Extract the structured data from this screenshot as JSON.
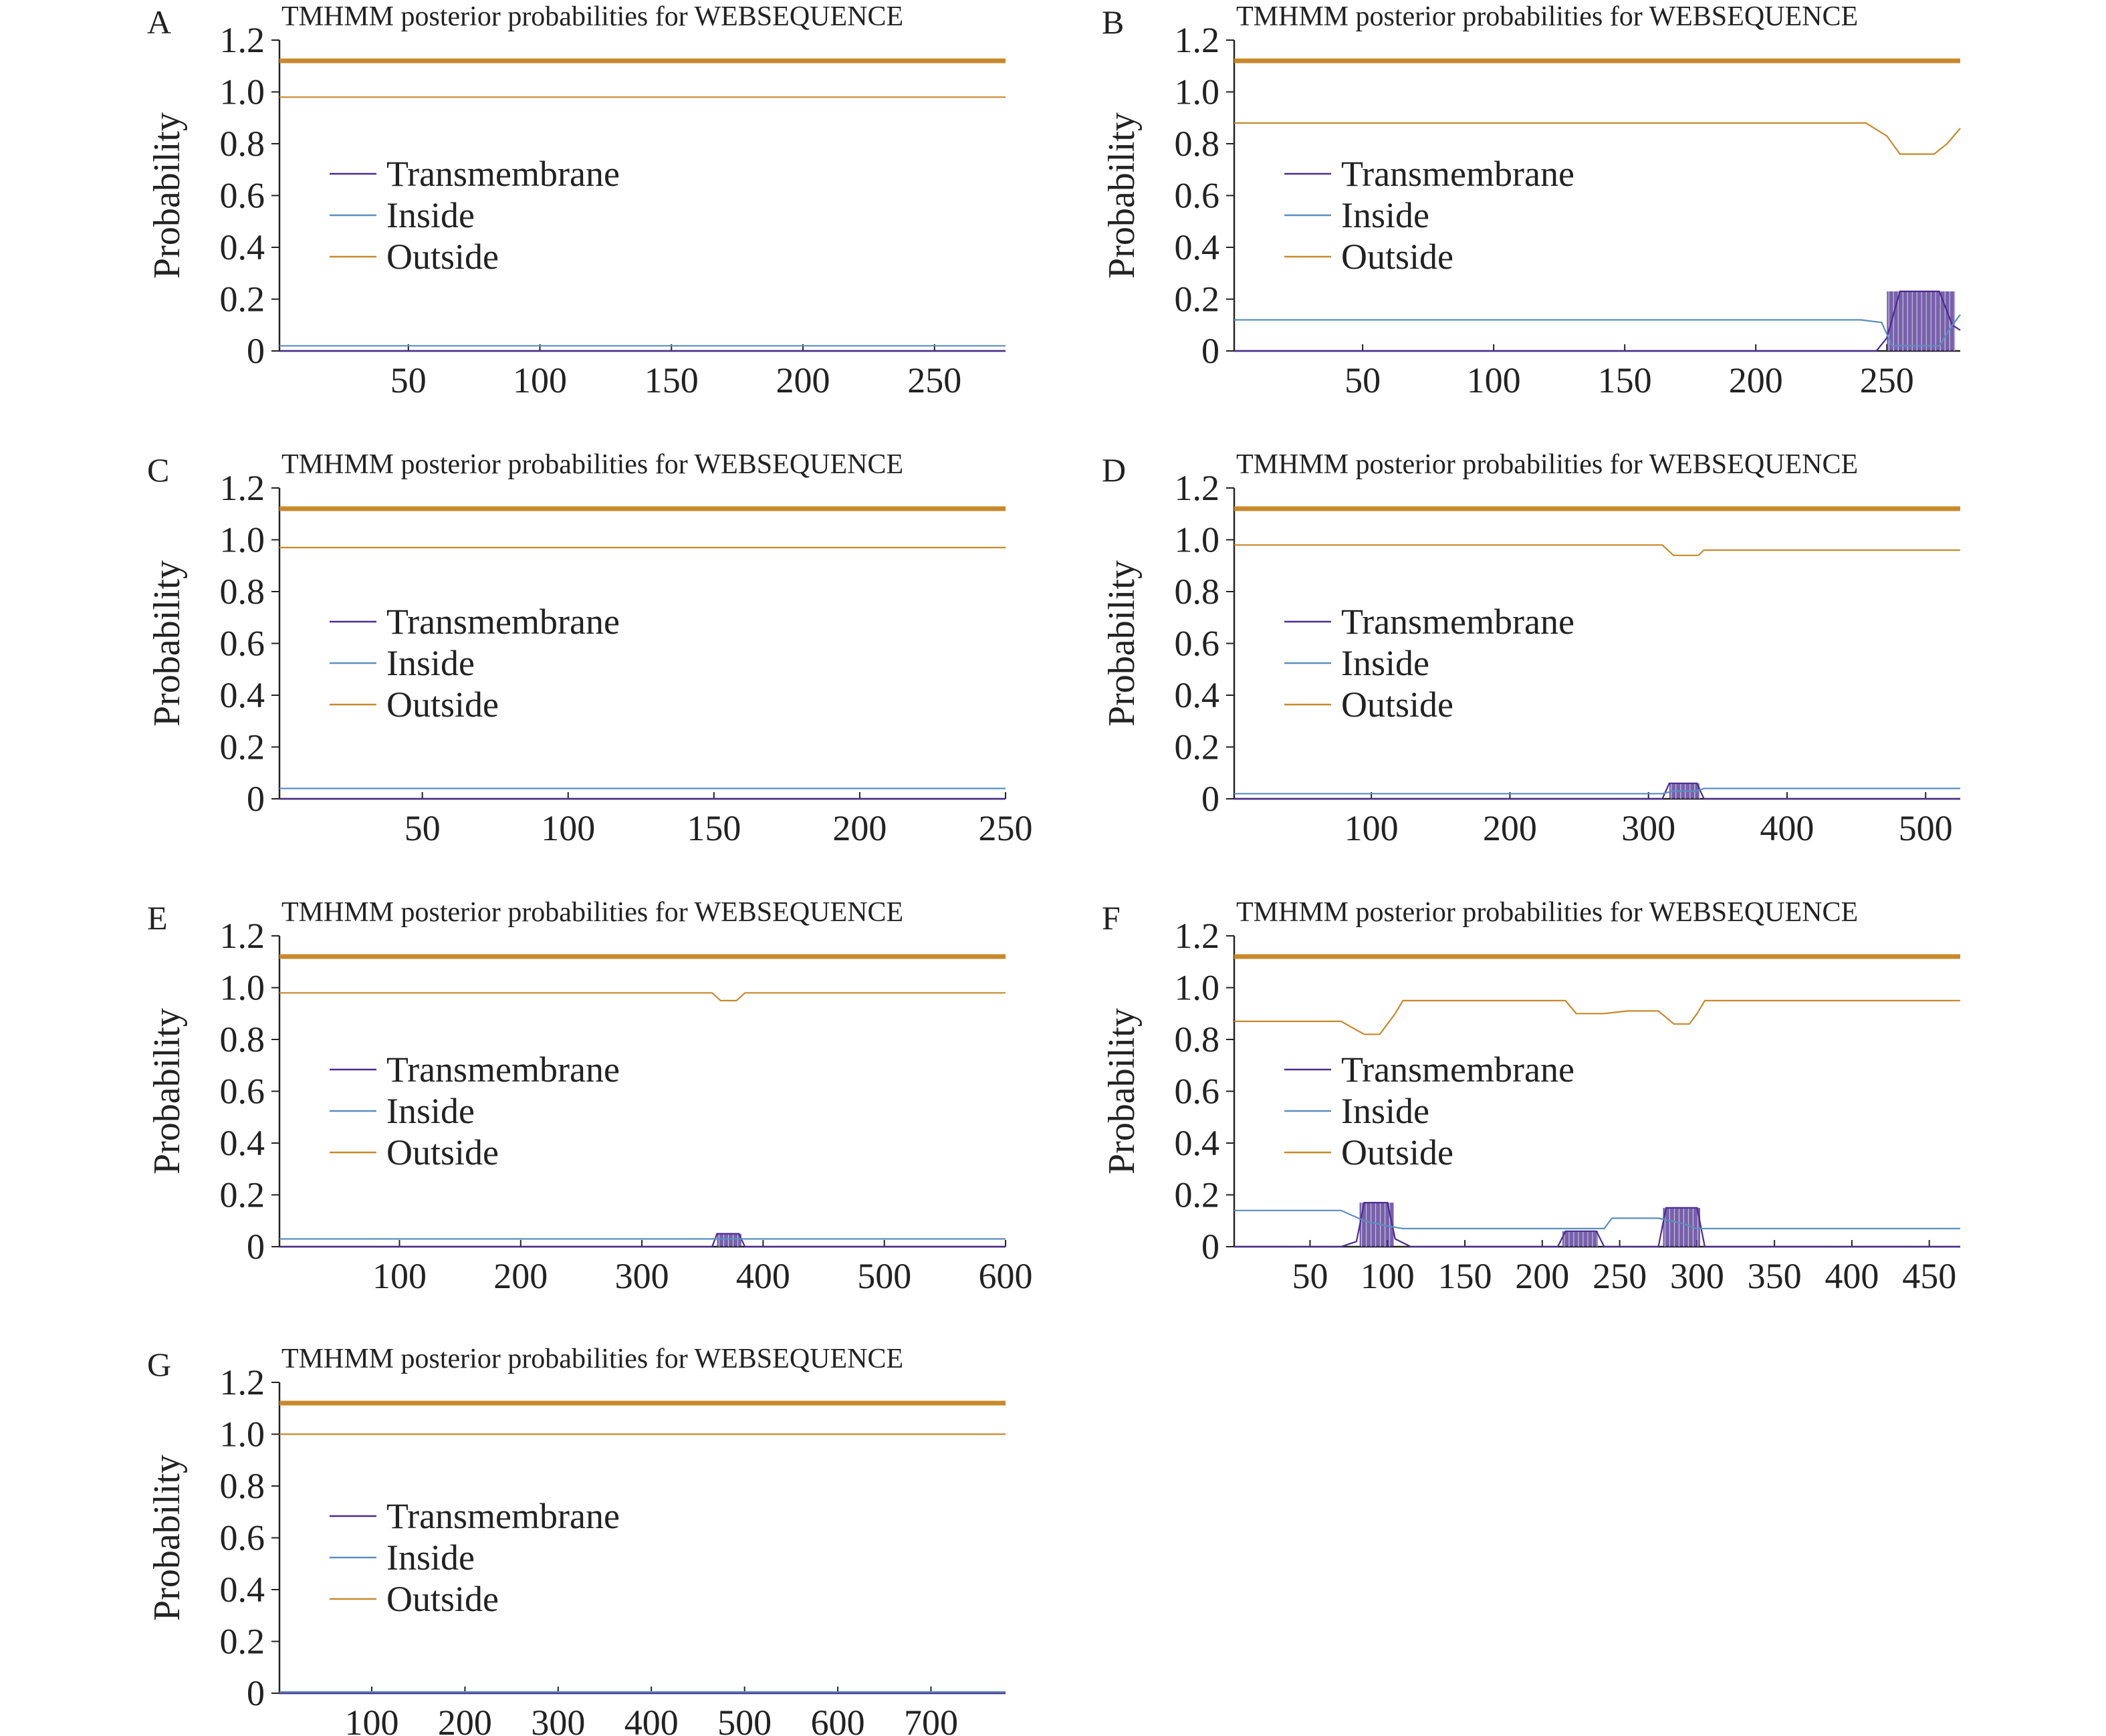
{
  "colors": {
    "transmembrane": "#4b2c8f",
    "inside": "#5b8fbf",
    "outside": "#c8892a",
    "axis": "#222222"
  },
  "chart_data": [
    {
      "panel": "A",
      "type": "line",
      "title": "TMHMM posterior probabilities for WEBSEQUENCE",
      "ylabel": "Probability",
      "xlabel": "",
      "xlim": [
        1,
        277
      ],
      "ylim": [
        0,
        1.2
      ],
      "xticks": [
        50,
        100,
        150,
        200,
        250
      ],
      "yticks": [
        0,
        0.2,
        0.4,
        0.6,
        0.8,
        1.0,
        1.2
      ],
      "ytick_labels": [
        "0",
        "0.2",
        "0.4",
        "0.6",
        "0.8",
        "1.0",
        "1.2"
      ],
      "legend": [
        "Transmembrane",
        "Inside",
        "Outside"
      ],
      "reference_line": 1.12,
      "series": [
        {
          "name": "Transmembrane",
          "x": [
            1,
            277
          ],
          "y": [
            0.0,
            0.0
          ]
        },
        {
          "name": "Inside",
          "x": [
            1,
            277
          ],
          "y": [
            0.02,
            0.02
          ]
        },
        {
          "name": "Outside",
          "x": [
            1,
            277
          ],
          "y": [
            0.98,
            0.98
          ]
        }
      ],
      "tm_bars": []
    },
    {
      "panel": "B",
      "type": "line",
      "title": "TMHMM posterior probabilities for WEBSEQUENCE",
      "ylabel": "Probability",
      "xlabel": "",
      "xlim": [
        1,
        278
      ],
      "ylim": [
        0,
        1.2
      ],
      "xticks": [
        50,
        100,
        150,
        200,
        250
      ],
      "yticks": [
        0,
        0.2,
        0.4,
        0.6,
        0.8,
        1.0,
        1.2
      ],
      "ytick_labels": [
        "0",
        "0.2",
        "0.4",
        "0.6",
        "0.8",
        "1.0",
        "1.2"
      ],
      "legend": [
        "Transmembrane",
        "Inside",
        "Outside"
      ],
      "reference_line": 1.12,
      "series": [
        {
          "name": "Transmembrane",
          "x": [
            1,
            246,
            250,
            255,
            270,
            275,
            278
          ],
          "y": [
            0,
            0,
            0.05,
            0.23,
            0.23,
            0.1,
            0.08
          ]
        },
        {
          "name": "Inside",
          "x": [
            1,
            240,
            248,
            252,
            270,
            275,
            278
          ],
          "y": [
            0.12,
            0.12,
            0.11,
            0.02,
            0.02,
            0.1,
            0.14
          ]
        },
        {
          "name": "Outside",
          "x": [
            1,
            242,
            250,
            255,
            268,
            273,
            278
          ],
          "y": [
            0.88,
            0.88,
            0.83,
            0.76,
            0.76,
            0.8,
            0.86
          ]
        }
      ],
      "tm_bars": [
        {
          "from": 250,
          "to": 276,
          "value": 0.23
        }
      ]
    },
    {
      "panel": "C",
      "type": "line",
      "title": "TMHMM posterior probabilities for WEBSEQUENCE",
      "ylabel": "Probability",
      "xlabel": "",
      "xlim": [
        1,
        250
      ],
      "ylim": [
        0,
        1.2
      ],
      "xticks": [
        50,
        100,
        150,
        200,
        250
      ],
      "yticks": [
        0,
        0.2,
        0.4,
        0.6,
        0.8,
        1.0,
        1.2
      ],
      "ytick_labels": [
        "0",
        "0.2",
        "0.4",
        "0.6",
        "0.8",
        "1.0",
        "1.2"
      ],
      "legend": [
        "Transmembrane",
        "Inside",
        "Outside"
      ],
      "reference_line": 1.12,
      "series": [
        {
          "name": "Transmembrane",
          "x": [
            1,
            250
          ],
          "y": [
            0,
            0
          ]
        },
        {
          "name": "Inside",
          "x": [
            1,
            250
          ],
          "y": [
            0.04,
            0.04
          ]
        },
        {
          "name": "Outside",
          "x": [
            1,
            250
          ],
          "y": [
            0.97,
            0.97
          ]
        }
      ],
      "tm_bars": []
    },
    {
      "panel": "D",
      "type": "line",
      "title": "TMHMM posterior probabilities for WEBSEQUENCE",
      "ylabel": "Probability",
      "xlabel": "",
      "xlim": [
        1,
        525
      ],
      "ylim": [
        0,
        1.2
      ],
      "xticks": [
        100,
        200,
        300,
        400,
        500
      ],
      "yticks": [
        0,
        0.2,
        0.4,
        0.6,
        0.8,
        1.0,
        1.2
      ],
      "ytick_labels": [
        "0",
        "0.2",
        "0.4",
        "0.6",
        "0.8",
        "1.0",
        "1.2"
      ],
      "legend": [
        "Transmembrane",
        "Inside",
        "Outside"
      ],
      "reference_line": 1.12,
      "series": [
        {
          "name": "Transmembrane",
          "x": [
            1,
            310,
            315,
            335,
            340,
            525
          ],
          "y": [
            0,
            0,
            0.06,
            0.06,
            0,
            0
          ]
        },
        {
          "name": "Inside",
          "x": [
            1,
            310,
            318,
            335,
            340,
            525
          ],
          "y": [
            0.02,
            0.02,
            0.03,
            0.03,
            0.04,
            0.04
          ]
        },
        {
          "name": "Outside",
          "x": [
            1,
            310,
            318,
            336,
            340,
            525
          ],
          "y": [
            0.98,
            0.98,
            0.94,
            0.94,
            0.96,
            0.96
          ]
        }
      ],
      "tm_bars": [
        {
          "from": 315,
          "to": 337,
          "value": 0.06
        }
      ]
    },
    {
      "panel": "E",
      "type": "line",
      "title": "TMHMM posterior probabilities for WEBSEQUENCE",
      "ylabel": "Probability",
      "xlabel": "",
      "xlim": [
        1,
        600
      ],
      "ylim": [
        0,
        1.2
      ],
      "xticks": [
        100,
        200,
        300,
        400,
        500,
        600
      ],
      "yticks": [
        0,
        0.2,
        0.4,
        0.6,
        0.8,
        1.0,
        1.2
      ],
      "ytick_labels": [
        "0",
        "0.2",
        "0.4",
        "0.6",
        "0.8",
        "1.0",
        "1.2"
      ],
      "legend": [
        "Transmembrane",
        "Inside",
        "Outside"
      ],
      "reference_line": 1.12,
      "series": [
        {
          "name": "Transmembrane",
          "x": [
            1,
            358,
            362,
            380,
            385,
            600
          ],
          "y": [
            0,
            0,
            0.05,
            0.05,
            0,
            0
          ]
        },
        {
          "name": "Inside",
          "x": [
            1,
            600
          ],
          "y": [
            0.03,
            0.03
          ]
        },
        {
          "name": "Outside",
          "x": [
            1,
            358,
            365,
            378,
            385,
            600
          ],
          "y": [
            0.98,
            0.98,
            0.95,
            0.95,
            0.98,
            0.98
          ]
        }
      ],
      "tm_bars": [
        {
          "from": 362,
          "to": 382,
          "value": 0.05
        }
      ]
    },
    {
      "panel": "F",
      "type": "line",
      "title": "TMHMM posterior probabilities for WEBSEQUENCE",
      "ylabel": "Probability",
      "xlabel": "",
      "xlim": [
        1,
        470
      ],
      "ylim": [
        0,
        1.2
      ],
      "xticks": [
        50,
        100,
        150,
        200,
        250,
        300,
        350,
        400,
        450
      ],
      "yticks": [
        0,
        0.2,
        0.4,
        0.6,
        0.8,
        1.0,
        1.2
      ],
      "ytick_labels": [
        "0",
        "0.2",
        "0.4",
        "0.6",
        "0.8",
        "1.0",
        "1.2"
      ],
      "legend": [
        "Transmembrane",
        "Inside",
        "Outside"
      ],
      "reference_line": 1.12,
      "series": [
        {
          "name": "Transmembrane",
          "x": [
            1,
            70,
            80,
            85,
            100,
            105,
            115,
            210,
            215,
            235,
            240,
            275,
            280,
            300,
            305,
            470
          ],
          "y": [
            0,
            0,
            0.02,
            0.17,
            0.17,
            0.03,
            0,
            0,
            0.06,
            0.06,
            0,
            0,
            0.15,
            0.15,
            0,
            0
          ]
        },
        {
          "name": "Inside",
          "x": [
            1,
            70,
            85,
            100,
            110,
            215,
            240,
            245,
            275,
            290,
            300,
            305,
            470
          ],
          "y": [
            0.14,
            0.14,
            0.1,
            0.08,
            0.07,
            0.07,
            0.07,
            0.11,
            0.11,
            0.09,
            0.07,
            0.07,
            0.07
          ]
        },
        {
          "name": "Outside",
          "x": [
            1,
            70,
            85,
            95,
            105,
            110,
            215,
            222,
            240,
            255,
            275,
            285,
            295,
            300,
            305,
            470
          ],
          "y": [
            0.87,
            0.87,
            0.82,
            0.82,
            0.9,
            0.95,
            0.95,
            0.9,
            0.9,
            0.91,
            0.91,
            0.86,
            0.86,
            0.9,
            0.95,
            0.95
          ]
        }
      ],
      "tm_bars": [
        {
          "from": 82,
          "to": 104,
          "value": 0.17
        },
        {
          "from": 213,
          "to": 236,
          "value": 0.06
        },
        {
          "from": 278,
          "to": 302,
          "value": 0.15
        }
      ]
    },
    {
      "panel": "G",
      "type": "line",
      "title": "TMHMM posterior probabilities for WEBSEQUENCE",
      "ylabel": "Probability",
      "xlabel": "",
      "xlim": [
        1,
        780
      ],
      "ylim": [
        0,
        1.2
      ],
      "xticks": [
        100,
        200,
        300,
        400,
        500,
        600,
        700
      ],
      "yticks": [
        0,
        0.2,
        0.4,
        0.6,
        0.8,
        1.0,
        1.2
      ],
      "ytick_labels": [
        "0",
        "0.2",
        "0.4",
        "0.6",
        "0.8",
        "1.0",
        "1.2"
      ],
      "legend": [
        "Transmembrane",
        "Inside",
        "Outside"
      ],
      "reference_line": 1.12,
      "series": [
        {
          "name": "Transmembrane",
          "x": [
            1,
            780
          ],
          "y": [
            0,
            0
          ]
        },
        {
          "name": "Inside",
          "x": [
            1,
            780
          ],
          "y": [
            0.005,
            0.005
          ]
        },
        {
          "name": "Outside",
          "x": [
            1,
            780
          ],
          "y": [
            1.0,
            1.0
          ]
        }
      ],
      "tm_bars": []
    }
  ]
}
